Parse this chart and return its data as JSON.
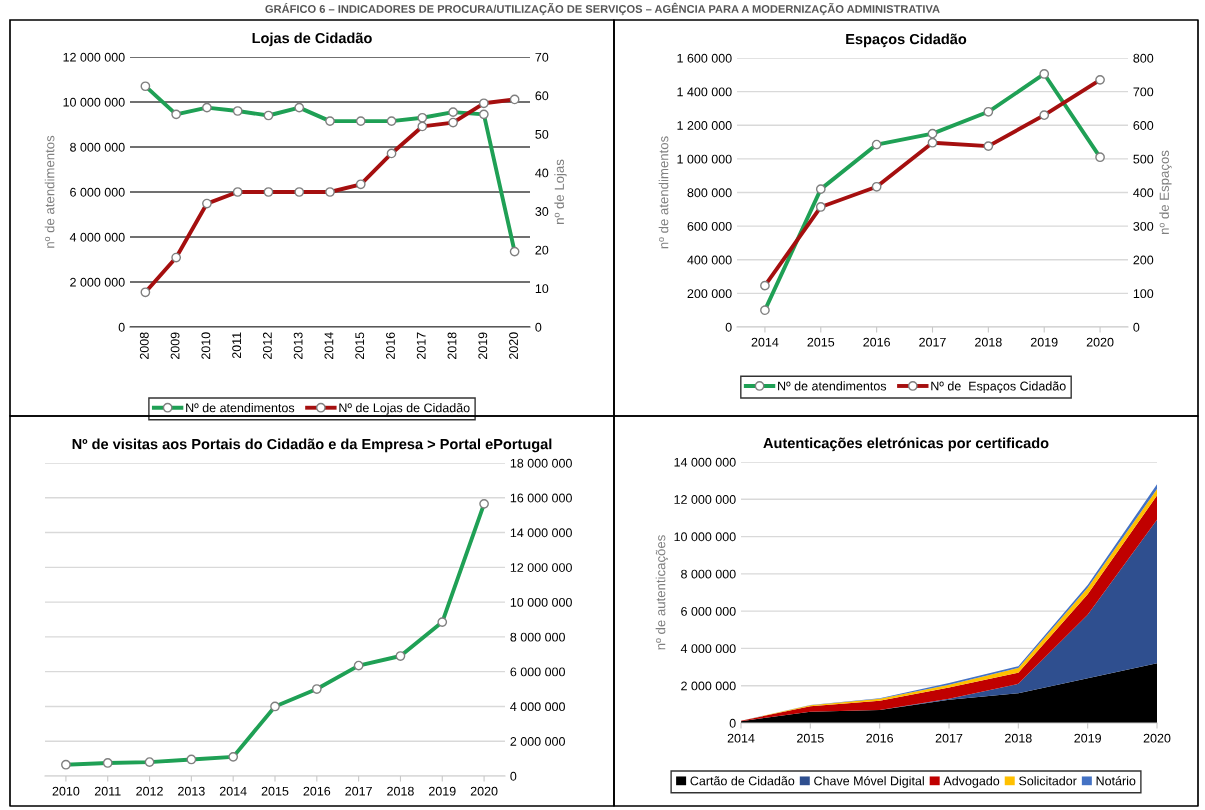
{
  "chart_data": [
    {
      "type": "line",
      "title": "Lojas de Cidadão",
      "annotations": [
        "GRÁFICO 6 – INDICADORES DE PROCURA/UTILIZAÇÃO DE SERVIÇOS – AGÊNCIA PARA A MODERNIZAÇÃO ADMINISTRATIVA"
      ],
      "ylabel": "nº de atendimentos",
      "y2label": "nº de Lojas",
      "categories": [
        "2008",
        "2009",
        "2010",
        "2011",
        "2012",
        "2013",
        "2014",
        "2015",
        "2016",
        "2017",
        "2018",
        "2019",
        "2020"
      ],
      "series": [
        {
          "name": "Nº de atendimentos",
          "color": "#1fa055",
          "values": [
            10700000,
            9450000,
            9750000,
            9600000,
            9400000,
            9750000,
            9150000,
            9150000,
            9150000,
            9300000,
            9550000,
            9450000,
            3350000
          ]
        },
        {
          "name": "Nº de Lojas de Cidadão",
          "color": "#a50f0f",
          "axis": "y2",
          "values": [
            9,
            18,
            32,
            35,
            35,
            35,
            35,
            37,
            45,
            52,
            53,
            58,
            59
          ]
        }
      ],
      "ylim": [
        0,
        12000000
      ],
      "yticks": [
        {
          "value": 0,
          "label": "0"
        },
        {
          "value": 2000000,
          "label": "2 000 000"
        },
        {
          "value": 4000000,
          "label": "4 000 000"
        },
        {
          "value": 6000000,
          "label": "6 000 000"
        },
        {
          "value": 8000000,
          "label": "8 000 000"
        },
        {
          "value": 10000000,
          "label": "10 000 000"
        },
        {
          "value": 12000000,
          "label": "12 000 000"
        }
      ],
      "y2lim": [
        0,
        70
      ],
      "y2ticks": [
        0,
        10,
        20,
        30,
        40,
        50,
        60,
        70
      ],
      "grid": "y",
      "legend": "bottom",
      "marker": "circle",
      "line_style": "solid"
    },
    {
      "type": "line",
      "title": "Espaços Cidadão",
      "ylabel": "nº de atendimentos",
      "y2label": "nº de Espaços",
      "categories": [
        "2014",
        "2015",
        "2016",
        "2017",
        "2018",
        "2019",
        "2020"
      ],
      "series": [
        {
          "name": "Nº de atendimentos",
          "color": "#1fa055",
          "values": [
            100000,
            820000,
            1085000,
            1150000,
            1280000,
            1505000,
            1010000
          ]
        },
        {
          "name": "Nº de  Espaços Cidadão",
          "color": "#a50f0f",
          "axis": "y2",
          "values": [
            123,
            357,
            417,
            548,
            538,
            630,
            735
          ]
        }
      ],
      "ylim": [
        0,
        1600000
      ],
      "yticks": [
        {
          "value": 0,
          "label": "0"
        },
        {
          "value": 200000,
          "label": "200 000"
        },
        {
          "value": 400000,
          "label": "400 000"
        },
        {
          "value": 600000,
          "label": "600 000"
        },
        {
          "value": 800000,
          "label": "800 000"
        },
        {
          "value": 1000000,
          "label": "1 000 000"
        },
        {
          "value": 1200000,
          "label": "1 200 000"
        },
        {
          "value": 1400000,
          "label": "1 400 000"
        },
        {
          "value": 1600000,
          "label": "1 600 000"
        }
      ],
      "y2lim": [
        0,
        800
      ],
      "y2ticks": [
        0,
        100,
        200,
        300,
        400,
        500,
        600,
        700,
        800
      ],
      "grid": "y",
      "legend": "bottom",
      "marker": "circle",
      "line_style": "solid"
    },
    {
      "type": "line",
      "title": "Nº de visitas aos Portais do Cidadão e da Empresa > Portal ePortugal",
      "categories": [
        "2010",
        "2011",
        "2012",
        "2013",
        "2014",
        "2015",
        "2016",
        "2017",
        "2018",
        "2019",
        "2020"
      ],
      "series": [
        {
          "color": "#1fa055",
          "axis": "y2",
          "values": [
            650000,
            750000,
            800000,
            950000,
            1100000,
            4000000,
            5000000,
            6350000,
            6900000,
            8850000,
            15650000
          ]
        }
      ],
      "y2lim": [
        0,
        18000000
      ],
      "y2ticks": [
        {
          "value": 0,
          "label": "0"
        },
        {
          "value": 2000000,
          "label": "2 000 000"
        },
        {
          "value": 4000000,
          "label": "4 000 000"
        },
        {
          "value": 6000000,
          "label": "6 000 000"
        },
        {
          "value": 8000000,
          "label": "8 000 000"
        },
        {
          "value": 10000000,
          "label": "10 000 000"
        },
        {
          "value": 12000000,
          "label": "12 000 000"
        },
        {
          "value": 14000000,
          "label": "14 000 000"
        },
        {
          "value": 16000000,
          "label": "16 000 000"
        },
        {
          "value": 18000000,
          "label": "18 000 000"
        }
      ],
      "grid": "y",
      "marker": "circle",
      "line_style": "solid"
    },
    {
      "type": "area",
      "stacked": true,
      "title": "Autenticações eletrónicas por certificado",
      "ylabel": "nº de autenticações",
      "categories": [
        "2014",
        "2015",
        "2016",
        "2017",
        "2018",
        "2019",
        "2020"
      ],
      "series": [
        {
          "name": "Cartão de Cidadão",
          "color": "#000000",
          "values": [
            100000,
            600000,
            700000,
            1250000,
            1600000,
            2400000,
            3200000
          ]
        },
        {
          "name": "Chave Móvel Digital",
          "color": "#2f4f8f",
          "values": [
            0,
            0,
            0,
            50000,
            500000,
            3400000,
            7700000
          ]
        },
        {
          "name": "Advogado",
          "color": "#c00000",
          "values": [
            20000,
            300000,
            500000,
            600000,
            600000,
            1100000,
            1300000
          ]
        },
        {
          "name": "Solicitador",
          "color": "#ffc000",
          "values": [
            0,
            50000,
            100000,
            150000,
            250000,
            350000,
            350000
          ]
        },
        {
          "name": "Notário",
          "color": "#4472c4",
          "values": [
            0,
            20000,
            30000,
            100000,
            100000,
            150000,
            250000
          ]
        }
      ],
      "ylim": [
        0,
        14000000
      ],
      "yticks": [
        {
          "value": 0,
          "label": "0"
        },
        {
          "value": 2000000,
          "label": "2 000 000"
        },
        {
          "value": 4000000,
          "label": "4 000 000"
        },
        {
          "value": 6000000,
          "label": "6 000 000"
        },
        {
          "value": 8000000,
          "label": "8 000 000"
        },
        {
          "value": 10000000,
          "label": "10 000 000"
        },
        {
          "value": 12000000,
          "label": "12 000 000"
        },
        {
          "value": 14000000,
          "label": "14 000 000"
        }
      ],
      "grid": "y",
      "legend": "bottom",
      "marker": "none"
    }
  ]
}
